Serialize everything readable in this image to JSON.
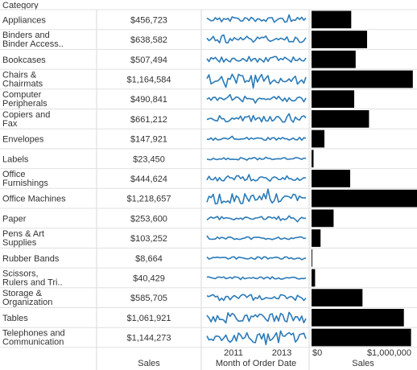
{
  "header": {
    "category_label": "Category"
  },
  "footer": {
    "sales_label": "Sales",
    "spark_axis_label": "Month of Order Date",
    "bar_axis_label": "Sales",
    "spark_ticks": [
      "2011",
      "2013"
    ],
    "bar_ticks": [
      "$0",
      "$1,000,000"
    ]
  },
  "colors": {
    "sparkline": "#2b7bb9",
    "bar": "#000000",
    "gridline": "#e0e0e0",
    "text": "#333333"
  },
  "chart_data": {
    "type": "table",
    "columns": [
      "Category",
      "Sales",
      "Month of Order Date",
      "Sales"
    ],
    "bar_axis": {
      "min": 0,
      "max": 1000000,
      "ticks": [
        0,
        1000000
      ]
    },
    "spark_axis": {
      "ticks": [
        "2011",
        "2013"
      ]
    },
    "rows": [
      {
        "category": "Appliances",
        "sales_text": "$456,723",
        "sales": 456723
      },
      {
        "category": "Binders and\nBinder Access..",
        "sales_text": "$638,582",
        "sales": 638582
      },
      {
        "category": "Bookcases",
        "sales_text": "$507,494",
        "sales": 507494
      },
      {
        "category": "Chairs &\nChairmats",
        "sales_text": "$1,164,584",
        "sales": 1164584
      },
      {
        "category": "Computer\nPeripherals",
        "sales_text": "$490,841",
        "sales": 490841
      },
      {
        "category": "Copiers and\nFax",
        "sales_text": "$661,212",
        "sales": 661212
      },
      {
        "category": "Envelopes",
        "sales_text": "$147,921",
        "sales": 147921
      },
      {
        "category": "Labels",
        "sales_text": "$23,450",
        "sales": 23450
      },
      {
        "category": "Office\nFurnishings",
        "sales_text": "$444,624",
        "sales": 444624
      },
      {
        "category": "Office Machines",
        "sales_text": "$1,218,657",
        "sales": 1218657
      },
      {
        "category": "Paper",
        "sales_text": "$253,600",
        "sales": 253600
      },
      {
        "category": "Pens & Art\nSupplies",
        "sales_text": "$103,252",
        "sales": 103252
      },
      {
        "category": "Rubber Bands",
        "sales_text": "$8,664",
        "sales": 8664
      },
      {
        "category": "Scissors,\nRulers and Tri..",
        "sales_text": "$40,429",
        "sales": 40429
      },
      {
        "category": "Storage &\nOrganization",
        "sales_text": "$585,705",
        "sales": 585705
      },
      {
        "category": "Tables",
        "sales_text": "$1,061,921",
        "sales": 1061921
      },
      {
        "category": "Telephones and\nCommunication",
        "sales_text": "$1,144,273",
        "sales": 1144273
      }
    ]
  }
}
